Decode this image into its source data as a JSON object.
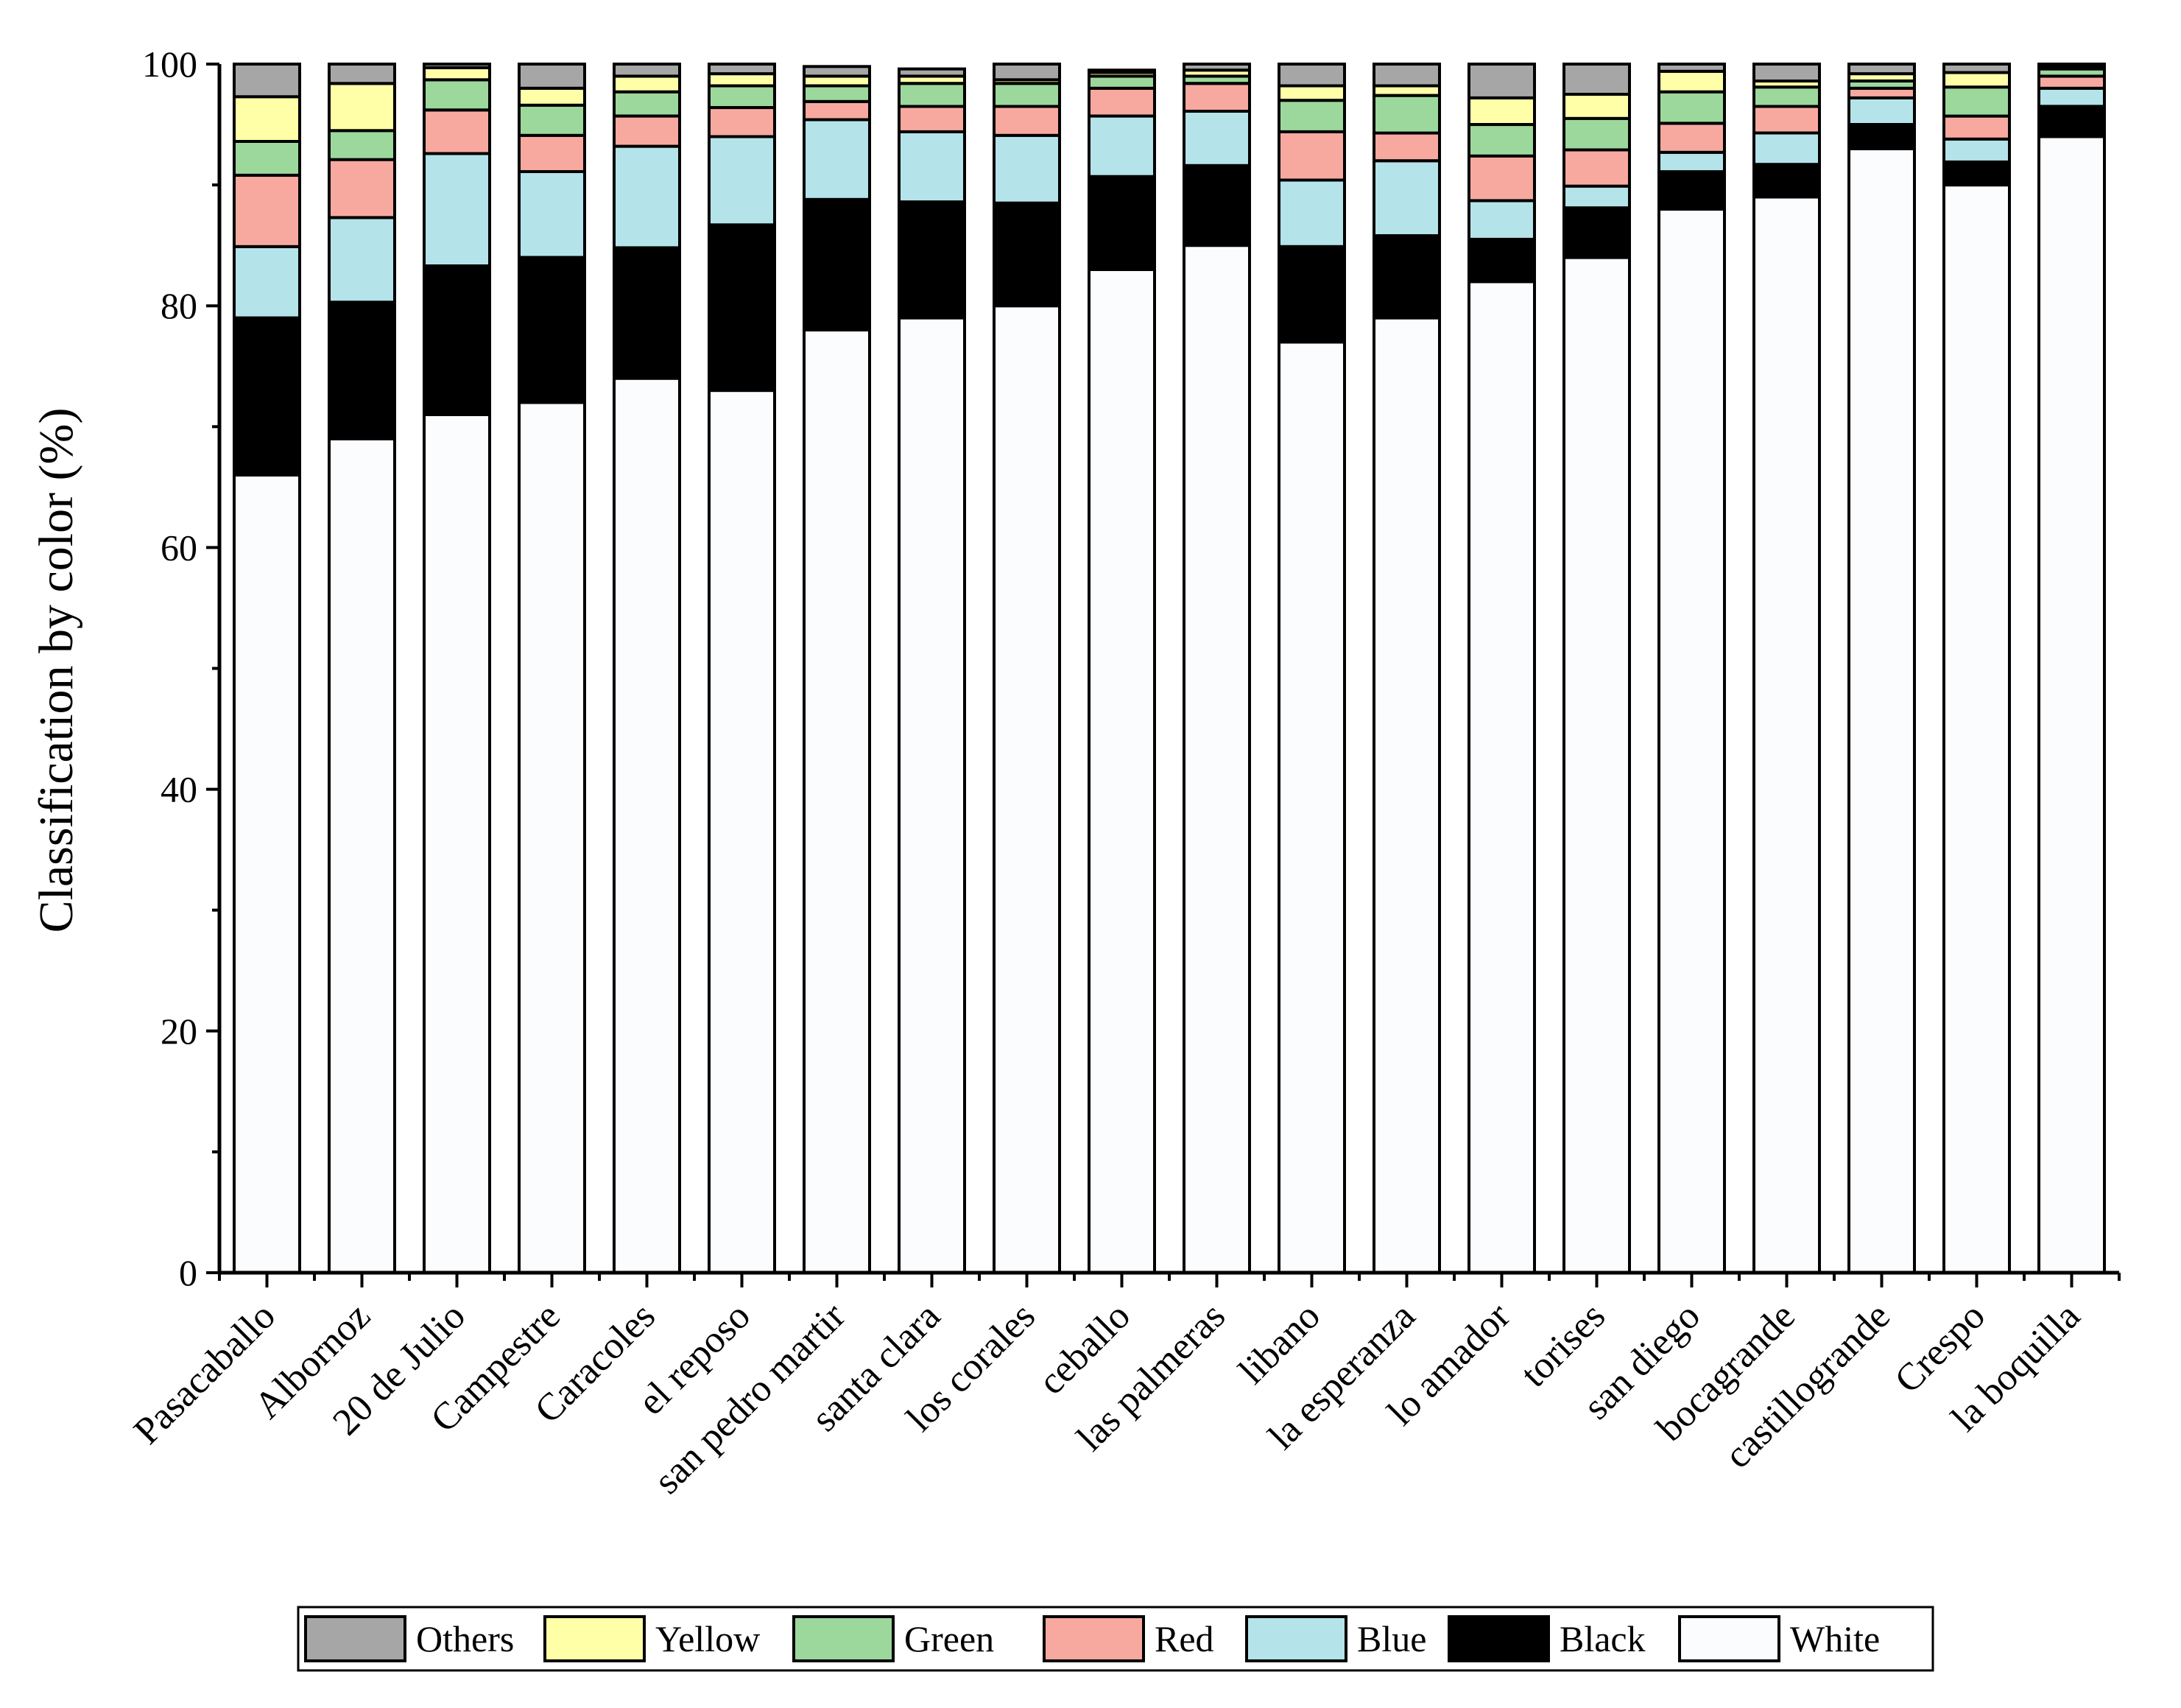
{
  "chart_data": {
    "type": "bar",
    "stacked": true,
    "ylabel": "Classification by color (%)",
    "xlabel": "",
    "ylim": [
      0,
      100
    ],
    "yticks": [
      "0",
      "20",
      "40",
      "60",
      "80",
      "100"
    ],
    "legend_position": "bottom",
    "categories": [
      "Pasacaballo",
      "Albornoz",
      "20 de Julio",
      "Campestre",
      "Caracoles",
      "el reposo",
      "san pedro martir",
      "santa clara",
      "los corales",
      "ceballo",
      "las palmeras",
      "libano",
      "la esperanza",
      "lo amador",
      "torises",
      "san diego",
      "bocagrande",
      "castillogrande",
      "Crespo",
      "la boquilla"
    ],
    "series": [
      {
        "name": "White",
        "color": "#FBFCFE",
        "values": [
          66,
          69,
          71,
          72,
          74,
          73,
          78,
          79,
          80,
          83,
          85,
          77,
          79,
          82,
          84,
          88,
          89,
          93,
          90,
          94
        ]
      },
      {
        "name": "Black",
        "color": "#000000",
        "values": [
          13,
          11.3,
          12.3,
          12,
          10.8,
          13.7,
          10.8,
          9.6,
          8.5,
          7.7,
          6.6,
          7.9,
          6.8,
          3.5,
          4.1,
          3.1,
          2.7,
          2,
          1.9,
          2.5
        ]
      },
      {
        "name": "Blue",
        "color": "#B5E3EA",
        "values": [
          5.9,
          7,
          9.3,
          7.1,
          8.4,
          7.3,
          6.6,
          5.8,
          5.6,
          5,
          4.5,
          5.5,
          6.2,
          3.2,
          1.8,
          1.6,
          2.6,
          2.2,
          1.9,
          1.5
        ]
      },
      {
        "name": "Red",
        "color": "#F7A9A0",
        "values": [
          5.9,
          4.8,
          3.6,
          3,
          2.5,
          2.4,
          1.5,
          2.1,
          2.4,
          2.3,
          2.3,
          4,
          2.3,
          3.7,
          3,
          2.4,
          2.2,
          0.8,
          1.9,
          1
        ]
      },
      {
        "name": "Green",
        "color": "#9CD89C",
        "values": [
          2.8,
          2.4,
          2.5,
          2.5,
          2,
          1.8,
          1.3,
          1.9,
          1.9,
          1,
          0.6,
          2.6,
          3.1,
          2.6,
          2.6,
          2.6,
          1.6,
          0.6,
          2.4,
          0.6
        ]
      },
      {
        "name": "Yellow",
        "color": "#FFFFA8",
        "values": [
          3.7,
          3.9,
          1,
          1.4,
          1.3,
          1,
          0.8,
          0.6,
          0.3,
          0.3,
          0.5,
          1.2,
          0.8,
          2.2,
          2,
          1.7,
          0.5,
          0.6,
          1.2,
          0.2
        ]
      },
      {
        "name": "Others",
        "color": "#A6A6A6",
        "values": [
          2.7,
          1.6,
          0.3,
          2,
          1,
          0.8,
          0.8,
          0.6,
          1.3,
          0.2,
          0.5,
          1.8,
          1.8,
          2.8,
          2.5,
          0.6,
          1.4,
          0.8,
          0.7,
          0.2
        ]
      }
    ],
    "legend_order": [
      "Others",
      "Yellow",
      "Green",
      "Red",
      "Blue",
      "Black",
      "White"
    ]
  }
}
